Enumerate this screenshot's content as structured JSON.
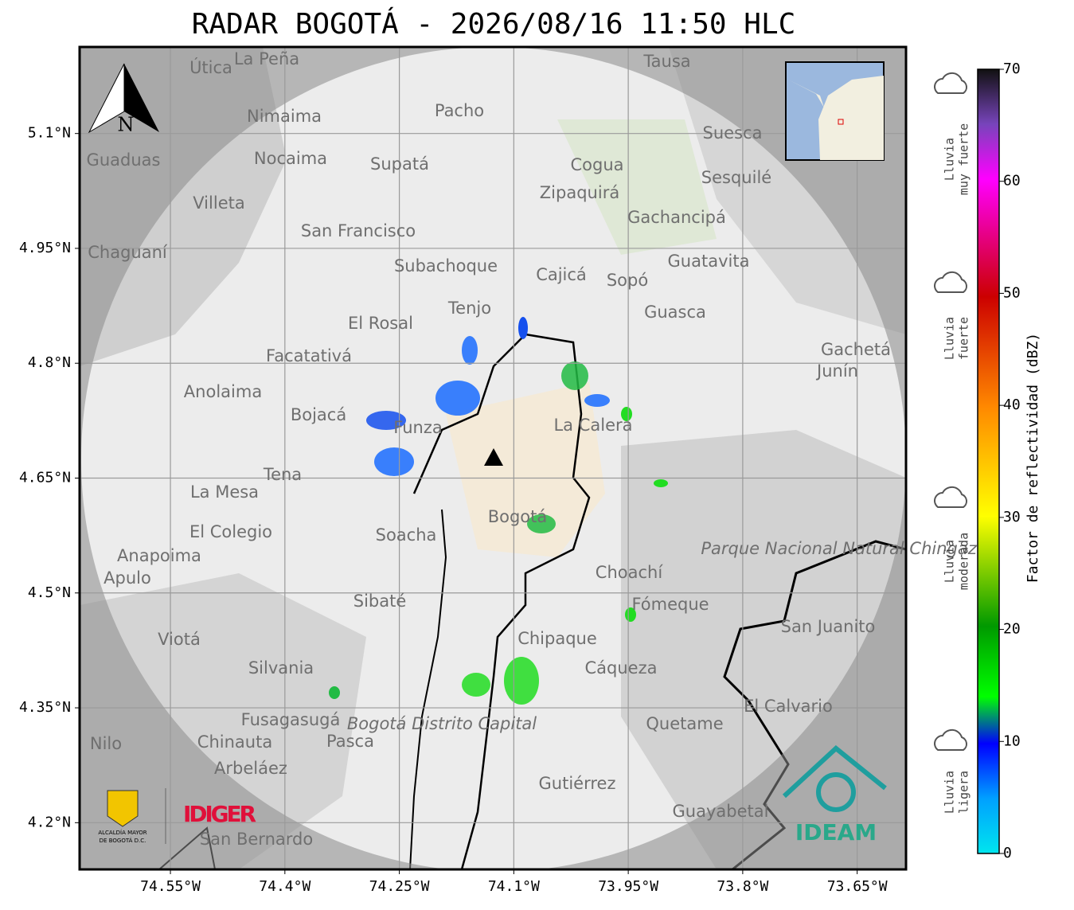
{
  "title": "RADAR BOGOTÁ - 2026/08/16 11:50 HLC",
  "map": {
    "xlim": [
      -74.669,
      -73.586
    ],
    "ylim": [
      4.139,
      5.213
    ],
    "xticks": [
      {
        "value": -74.55,
        "label": "74.55°W"
      },
      {
        "value": -74.4,
        "label": "74.4°W"
      },
      {
        "value": -74.25,
        "label": "74.25°W"
      },
      {
        "value": -74.1,
        "label": "74.1°W"
      },
      {
        "value": -73.95,
        "label": "73.95°W"
      },
      {
        "value": -73.8,
        "label": "73.8°W"
      },
      {
        "value": -73.65,
        "label": "73.65°W"
      }
    ],
    "yticks": [
      {
        "value": 5.1,
        "label": "5.1°N"
      },
      {
        "value": 4.95,
        "label": "4.95°N"
      },
      {
        "value": 4.8,
        "label": "4.8°N"
      },
      {
        "value": 4.65,
        "label": "4.65°N"
      },
      {
        "value": 4.5,
        "label": "4.5°N"
      },
      {
        "value": 4.35,
        "label": "4.35°N"
      },
      {
        "value": 4.2,
        "label": "4.2°N"
      }
    ],
    "grid": true,
    "north": "N",
    "places": [
      "La Peña",
      "Útica",
      "Tausa",
      "Pacho",
      "Nimaima",
      "Guaduas",
      "Nocaima",
      "Supatá",
      "Cogua",
      "Suesca",
      "Sesquilé",
      "Zipaquirá",
      "Villeta",
      "Gachancipá",
      "San Francisco",
      "Chaguaní",
      "Guatavita",
      "Subachoque",
      "Cajicá",
      "Sopó",
      "Tenjo",
      "Guasca",
      "El Rosal",
      "Facatativá",
      "Gachetá",
      "Junín",
      "Anolaima",
      "Bojacá",
      "Funza",
      "La Calera",
      "Tena",
      "La Mesa",
      "Bogotá",
      "Soacha",
      "El Colegio",
      "Anapoima",
      "Choachí",
      "Apulo",
      "Fómeque",
      "Sibaté",
      "San Juanito",
      "Viotá",
      "Chipaque",
      "Silvania",
      "Cáqueza",
      "El Calvario",
      "Fusagasugá",
      "Quetame",
      "Chinauta",
      "Pasca",
      "Arbeláez",
      "Gutiérrez",
      "Guayabetal",
      "San Bernardo",
      "Nilo",
      "Bogotá Distrito Capital",
      "Parque Nacional Natural Chingaza"
    ]
  },
  "colorbar": {
    "label": "Factor de reflectividad (dBZ)",
    "lim": [
      0,
      70
    ],
    "ticks": [
      0,
      10,
      20,
      30,
      40,
      50,
      60,
      70
    ]
  },
  "intensity": [
    [
      "Lluvia",
      "ligera"
    ],
    [
      "Lluvia",
      "moderada"
    ],
    [
      "Lluvia",
      "fuerte"
    ],
    [
      "Lluvia",
      "muy fuerte"
    ]
  ],
  "logos": {
    "idiger": "IDIGER",
    "ideam": "IDEAM",
    "alcaldia": [
      "ALCALDÍA MAYOR",
      "DE BOGOTÁ D.C."
    ]
  }
}
